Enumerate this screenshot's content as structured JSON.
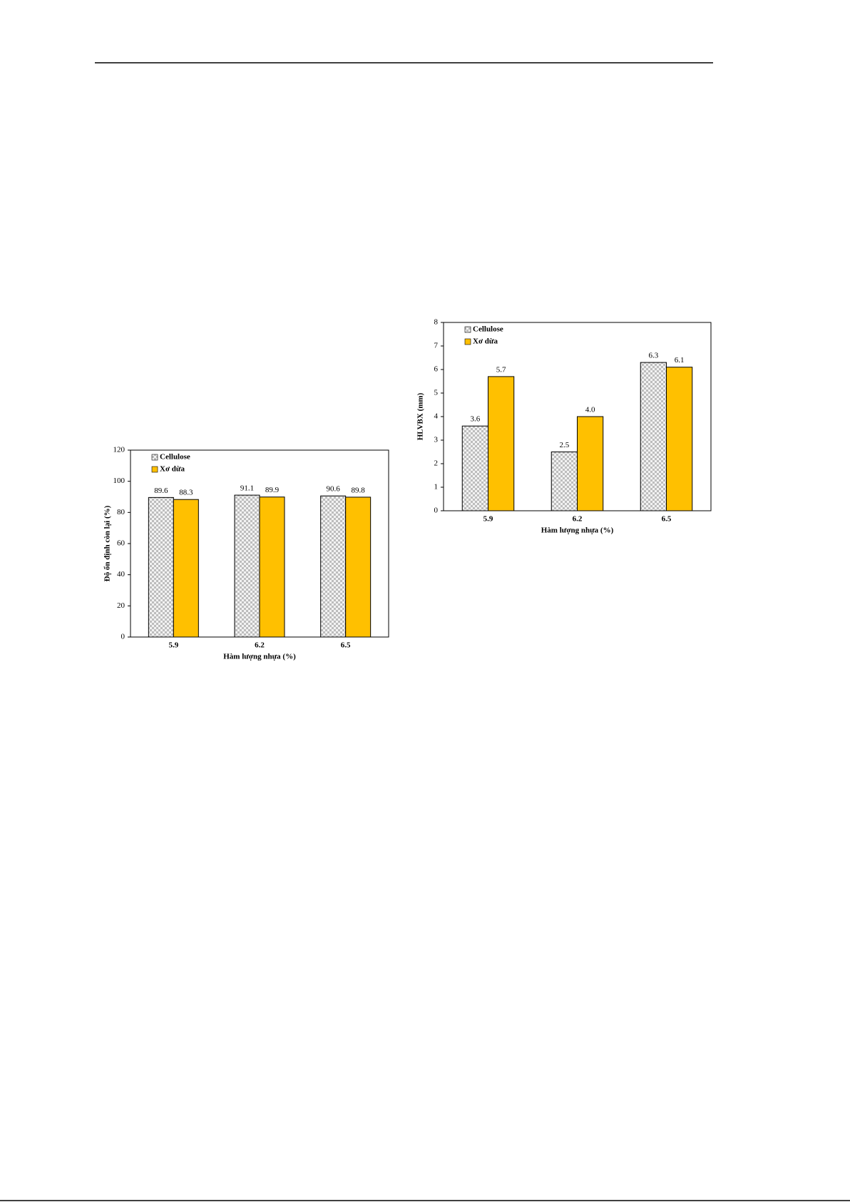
{
  "chart_data": [
    {
      "type": "bar",
      "y_label": "Độ ổn định còn lại (%)",
      "x_label": "Hàm lượng nhựa (%)",
      "categories": [
        "5.9",
        "6.2",
        "6.5"
      ],
      "series": [
        {
          "name": "Cellulose",
          "color": "#d4d4d4",
          "pattern": "checker",
          "values": [
            89.6,
            91.1,
            90.6
          ]
        },
        {
          "name": "Xơ dừa",
          "color": "#ffc000",
          "values": [
            88.3,
            89.9,
            89.8
          ]
        }
      ],
      "ylim": [
        0,
        120
      ],
      "yticks": [
        0,
        20,
        40,
        60,
        80,
        100,
        120
      ],
      "legend": "upper left"
    },
    {
      "type": "bar",
      "y_label": "HLVBX (mm)",
      "x_label": "Hàm lượng nhựa (%)",
      "categories": [
        "5.9",
        "6.2",
        "6.5"
      ],
      "series": [
        {
          "name": "Cellulose",
          "color": "#d4d4d4",
          "pattern": "checker",
          "values": [
            3.6,
            2.5,
            6.3
          ]
        },
        {
          "name": "Xơ dừa",
          "color": "#ffc000",
          "values": [
            5.7,
            4.0,
            6.1
          ],
          "value_labels": [
            "5.7",
            "4.0",
            "6.1"
          ]
        }
      ],
      "ylim": [
        0,
        8
      ],
      "yticks": [
        0,
        1,
        2,
        3,
        4,
        5,
        6,
        7,
        8
      ],
      "legend": "upper left"
    }
  ]
}
